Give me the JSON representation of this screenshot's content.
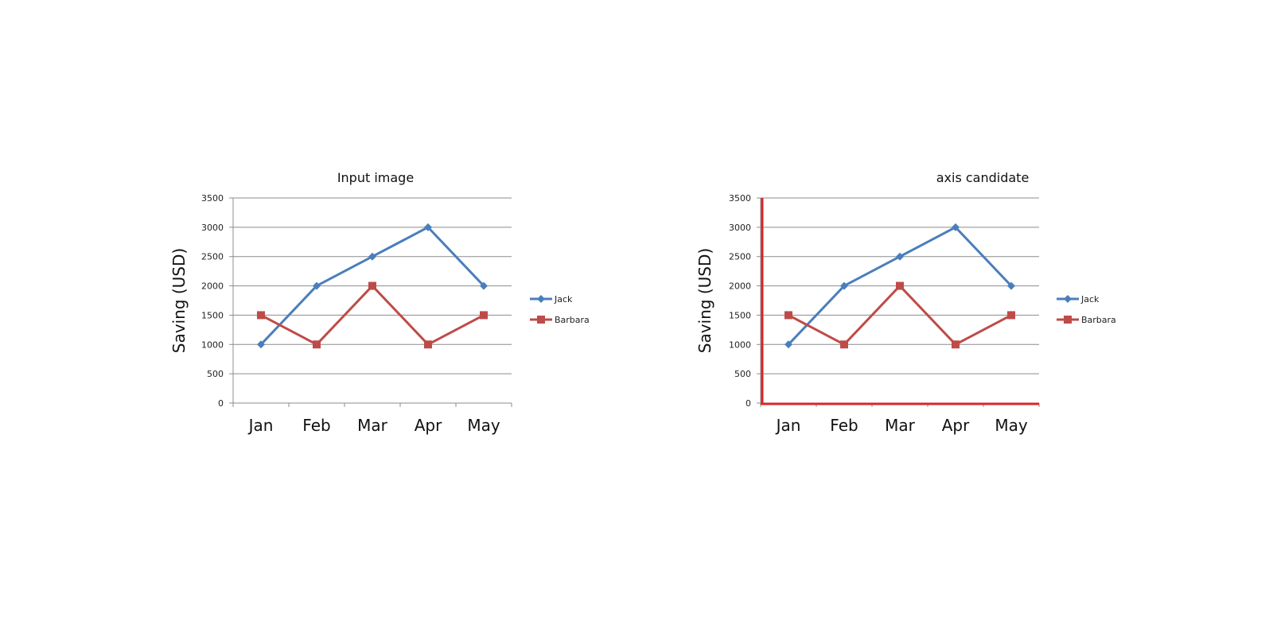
{
  "panels": [
    {
      "title": "Input image",
      "axis_highlight": false
    },
    {
      "title": "axis candidate",
      "axis_highlight": true
    }
  ],
  "colors": {
    "jack": "#4a7ebb",
    "barbara": "#be4b48",
    "grid": "#8c8c8c",
    "axis_highlight": "#d62728"
  },
  "chart_data": [
    {
      "type": "line",
      "title": "",
      "xlabel": "",
      "ylabel": "Saving (USD)",
      "categories": [
        "Jan",
        "Feb",
        "Mar",
        "Apr",
        "May"
      ],
      "ylim": [
        0,
        3500
      ],
      "yticks": [
        0,
        500,
        1000,
        1500,
        2000,
        2500,
        3000,
        3500
      ],
      "grid": true,
      "legend": "right",
      "series": [
        {
          "name": "Jack",
          "values": [
            1000,
            2000,
            2500,
            3000,
            2000
          ],
          "marker": "diamond"
        },
        {
          "name": "Barbara",
          "values": [
            1500,
            1000,
            2000,
            1000,
            1500
          ],
          "marker": "square"
        }
      ]
    },
    {
      "type": "line",
      "title": "",
      "xlabel": "",
      "ylabel": "Saving (USD)",
      "categories": [
        "Jan",
        "Feb",
        "Mar",
        "Apr",
        "May"
      ],
      "ylim": [
        0,
        3500
      ],
      "yticks": [
        0,
        500,
        1000,
        1500,
        2000,
        2500,
        3000,
        3500
      ],
      "grid": true,
      "legend": "right",
      "series": [
        {
          "name": "Jack",
          "values": [
            1000,
            2000,
            2500,
            3000,
            2000
          ],
          "marker": "diamond"
        },
        {
          "name": "Barbara",
          "values": [
            1500,
            1000,
            2000,
            1000,
            1500
          ],
          "marker": "square"
        }
      ]
    }
  ]
}
